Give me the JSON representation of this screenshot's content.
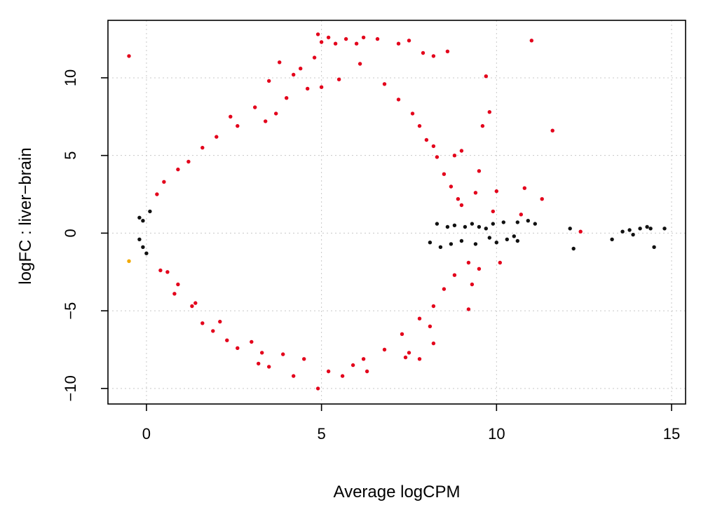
{
  "chart_data": {
    "type": "scatter",
    "title": "",
    "xlabel": "Average logCPM",
    "ylabel": "logFC : liver−brain",
    "xlim": [
      -1.1,
      15.4
    ],
    "ylim": [
      -11.0,
      13.7
    ],
    "x_ticks": [
      0,
      5,
      10,
      15
    ],
    "y_ticks": [
      -10,
      -5,
      0,
      5,
      10
    ],
    "x_tick_labels": [
      "0",
      "5",
      "10",
      "15"
    ],
    "y_tick_labels": [
      "−10",
      "−5",
      "0",
      "5",
      "10"
    ],
    "grid": true,
    "legend": "none",
    "colors": {
      "not_significant": "#111111",
      "significant": "#e3001b",
      "outlier_low_count": "#f2a900"
    },
    "series": [
      {
        "color_key": "significant",
        "points": [
          [
            -0.5,
            11.4
          ],
          [
            11.0,
            12.4
          ],
          [
            4.9,
            12.8
          ],
          [
            5.0,
            12.3
          ],
          [
            5.2,
            12.6
          ],
          [
            5.7,
            12.5
          ],
          [
            6.2,
            12.6
          ],
          [
            6.6,
            12.5
          ],
          [
            7.2,
            12.2
          ],
          [
            7.5,
            12.4
          ],
          [
            6.0,
            12.2
          ],
          [
            5.4,
            12.2
          ],
          [
            8.6,
            11.7
          ],
          [
            7.9,
            11.6
          ],
          [
            9.7,
            10.1
          ],
          [
            9.8,
            7.8
          ],
          [
            9.6,
            6.9
          ],
          [
            11.6,
            6.6
          ],
          [
            3.8,
            11.0
          ],
          [
            4.4,
            10.6
          ],
          [
            4.2,
            10.2
          ],
          [
            5.0,
            9.4
          ],
          [
            3.5,
            9.8
          ],
          [
            3.1,
            8.1
          ],
          [
            2.4,
            7.5
          ],
          [
            8.2,
            11.4
          ],
          [
            4.8,
            11.3
          ],
          [
            10.8,
            2.9
          ],
          [
            10.7,
            1.2
          ],
          [
            11.3,
            2.2
          ],
          [
            9.5,
            4.0
          ],
          [
            9.4,
            2.6
          ],
          [
            9.0,
            5.3
          ],
          [
            8.8,
            5.0
          ],
          [
            10.0,
            2.7
          ],
          [
            8.2,
            5.6
          ],
          [
            4.9,
            -10.0
          ],
          [
            4.2,
            -9.2
          ],
          [
            3.2,
            -8.4
          ],
          [
            3.5,
            -8.6
          ],
          [
            6.3,
            -8.9
          ],
          [
            5.6,
            -9.2
          ],
          [
            5.9,
            -8.5
          ],
          [
            7.4,
            -8.0
          ],
          [
            7.5,
            -7.7
          ],
          [
            7.8,
            -8.1
          ],
          [
            8.2,
            -7.1
          ],
          [
            9.2,
            -4.9
          ],
          [
            9.3,
            -3.3
          ],
          [
            9.5,
            -2.3
          ],
          [
            8.1,
            -6.0
          ],
          [
            3.3,
            -7.7
          ],
          [
            2.6,
            -7.4
          ],
          [
            2.3,
            -6.9
          ],
          [
            1.6,
            -5.8
          ],
          [
            1.9,
            -6.3
          ],
          [
            1.3,
            -4.7
          ],
          [
            0.8,
            -3.9
          ],
          [
            0.4,
            -2.4
          ],
          [
            0.3,
            2.5
          ],
          [
            0.5,
            3.3
          ],
          [
            0.9,
            4.1
          ],
          [
            1.2,
            4.6
          ],
          [
            1.6,
            5.5
          ],
          [
            2.0,
            6.2
          ],
          [
            2.6,
            6.9
          ],
          [
            3.4,
            7.2
          ],
          [
            3.7,
            7.7
          ],
          [
            4.0,
            8.7
          ],
          [
            4.6,
            9.3
          ],
          [
            5.5,
            9.9
          ],
          [
            6.1,
            10.9
          ],
          [
            6.8,
            9.6
          ],
          [
            7.2,
            8.6
          ],
          [
            7.6,
            7.7
          ],
          [
            7.8,
            6.9
          ],
          [
            8.0,
            6.0
          ],
          [
            8.3,
            4.9
          ],
          [
            8.5,
            3.8
          ],
          [
            8.7,
            3.0
          ],
          [
            8.9,
            2.2
          ],
          [
            9.0,
            1.8
          ],
          [
            9.2,
            -1.9
          ],
          [
            8.8,
            -2.7
          ],
          [
            8.5,
            -3.6
          ],
          [
            8.2,
            -4.7
          ],
          [
            7.8,
            -5.5
          ],
          [
            7.3,
            -6.5
          ],
          [
            6.8,
            -7.5
          ],
          [
            6.2,
            -8.1
          ],
          [
            5.2,
            -8.9
          ],
          [
            4.5,
            -8.1
          ],
          [
            3.9,
            -7.8
          ],
          [
            3.0,
            -7.0
          ],
          [
            2.1,
            -5.7
          ],
          [
            1.4,
            -4.5
          ],
          [
            0.9,
            -3.3
          ],
          [
            0.6,
            -2.5
          ],
          [
            10.1,
            -1.9
          ],
          [
            9.9,
            1.4
          ],
          [
            12.4,
            0.1
          ]
        ]
      },
      {
        "color_key": "outlier_low_count",
        "points": [
          [
            -0.5,
            -1.8
          ]
        ]
      },
      {
        "color_key": "not_significant",
        "points": [
          [
            -0.2,
            1.0
          ],
          [
            -0.1,
            0.8
          ],
          [
            -0.2,
            -0.4
          ],
          [
            -0.1,
            -0.9
          ],
          [
            0.1,
            1.4
          ],
          [
            0.0,
            -1.3
          ],
          [
            8.3,
            0.6
          ],
          [
            8.6,
            0.4
          ],
          [
            8.8,
            0.5
          ],
          [
            9.1,
            0.4
          ],
          [
            9.3,
            0.6
          ],
          [
            9.5,
            0.4
          ],
          [
            9.7,
            0.3
          ],
          [
            9.9,
            0.6
          ],
          [
            10.2,
            0.7
          ],
          [
            10.6,
            0.7
          ],
          [
            10.9,
            0.8
          ],
          [
            11.1,
            0.6
          ],
          [
            10.0,
            -0.6
          ],
          [
            10.3,
            -0.4
          ],
          [
            10.5,
            -0.2
          ],
          [
            10.6,
            -0.5
          ],
          [
            9.8,
            -0.3
          ],
          [
            9.4,
            -0.7
          ],
          [
            9.0,
            -0.5
          ],
          [
            8.7,
            -0.7
          ],
          [
            12.1,
            0.3
          ],
          [
            12.2,
            -1.0
          ],
          [
            13.3,
            -0.4
          ],
          [
            13.6,
            0.1
          ],
          [
            13.8,
            0.2
          ],
          [
            13.9,
            -0.1
          ],
          [
            14.1,
            0.3
          ],
          [
            14.3,
            0.4
          ],
          [
            14.4,
            0.3
          ],
          [
            14.5,
            -0.9
          ],
          [
            14.8,
            0.3
          ],
          [
            8.4,
            -0.9
          ],
          [
            8.1,
            -0.6
          ]
        ]
      }
    ]
  }
}
